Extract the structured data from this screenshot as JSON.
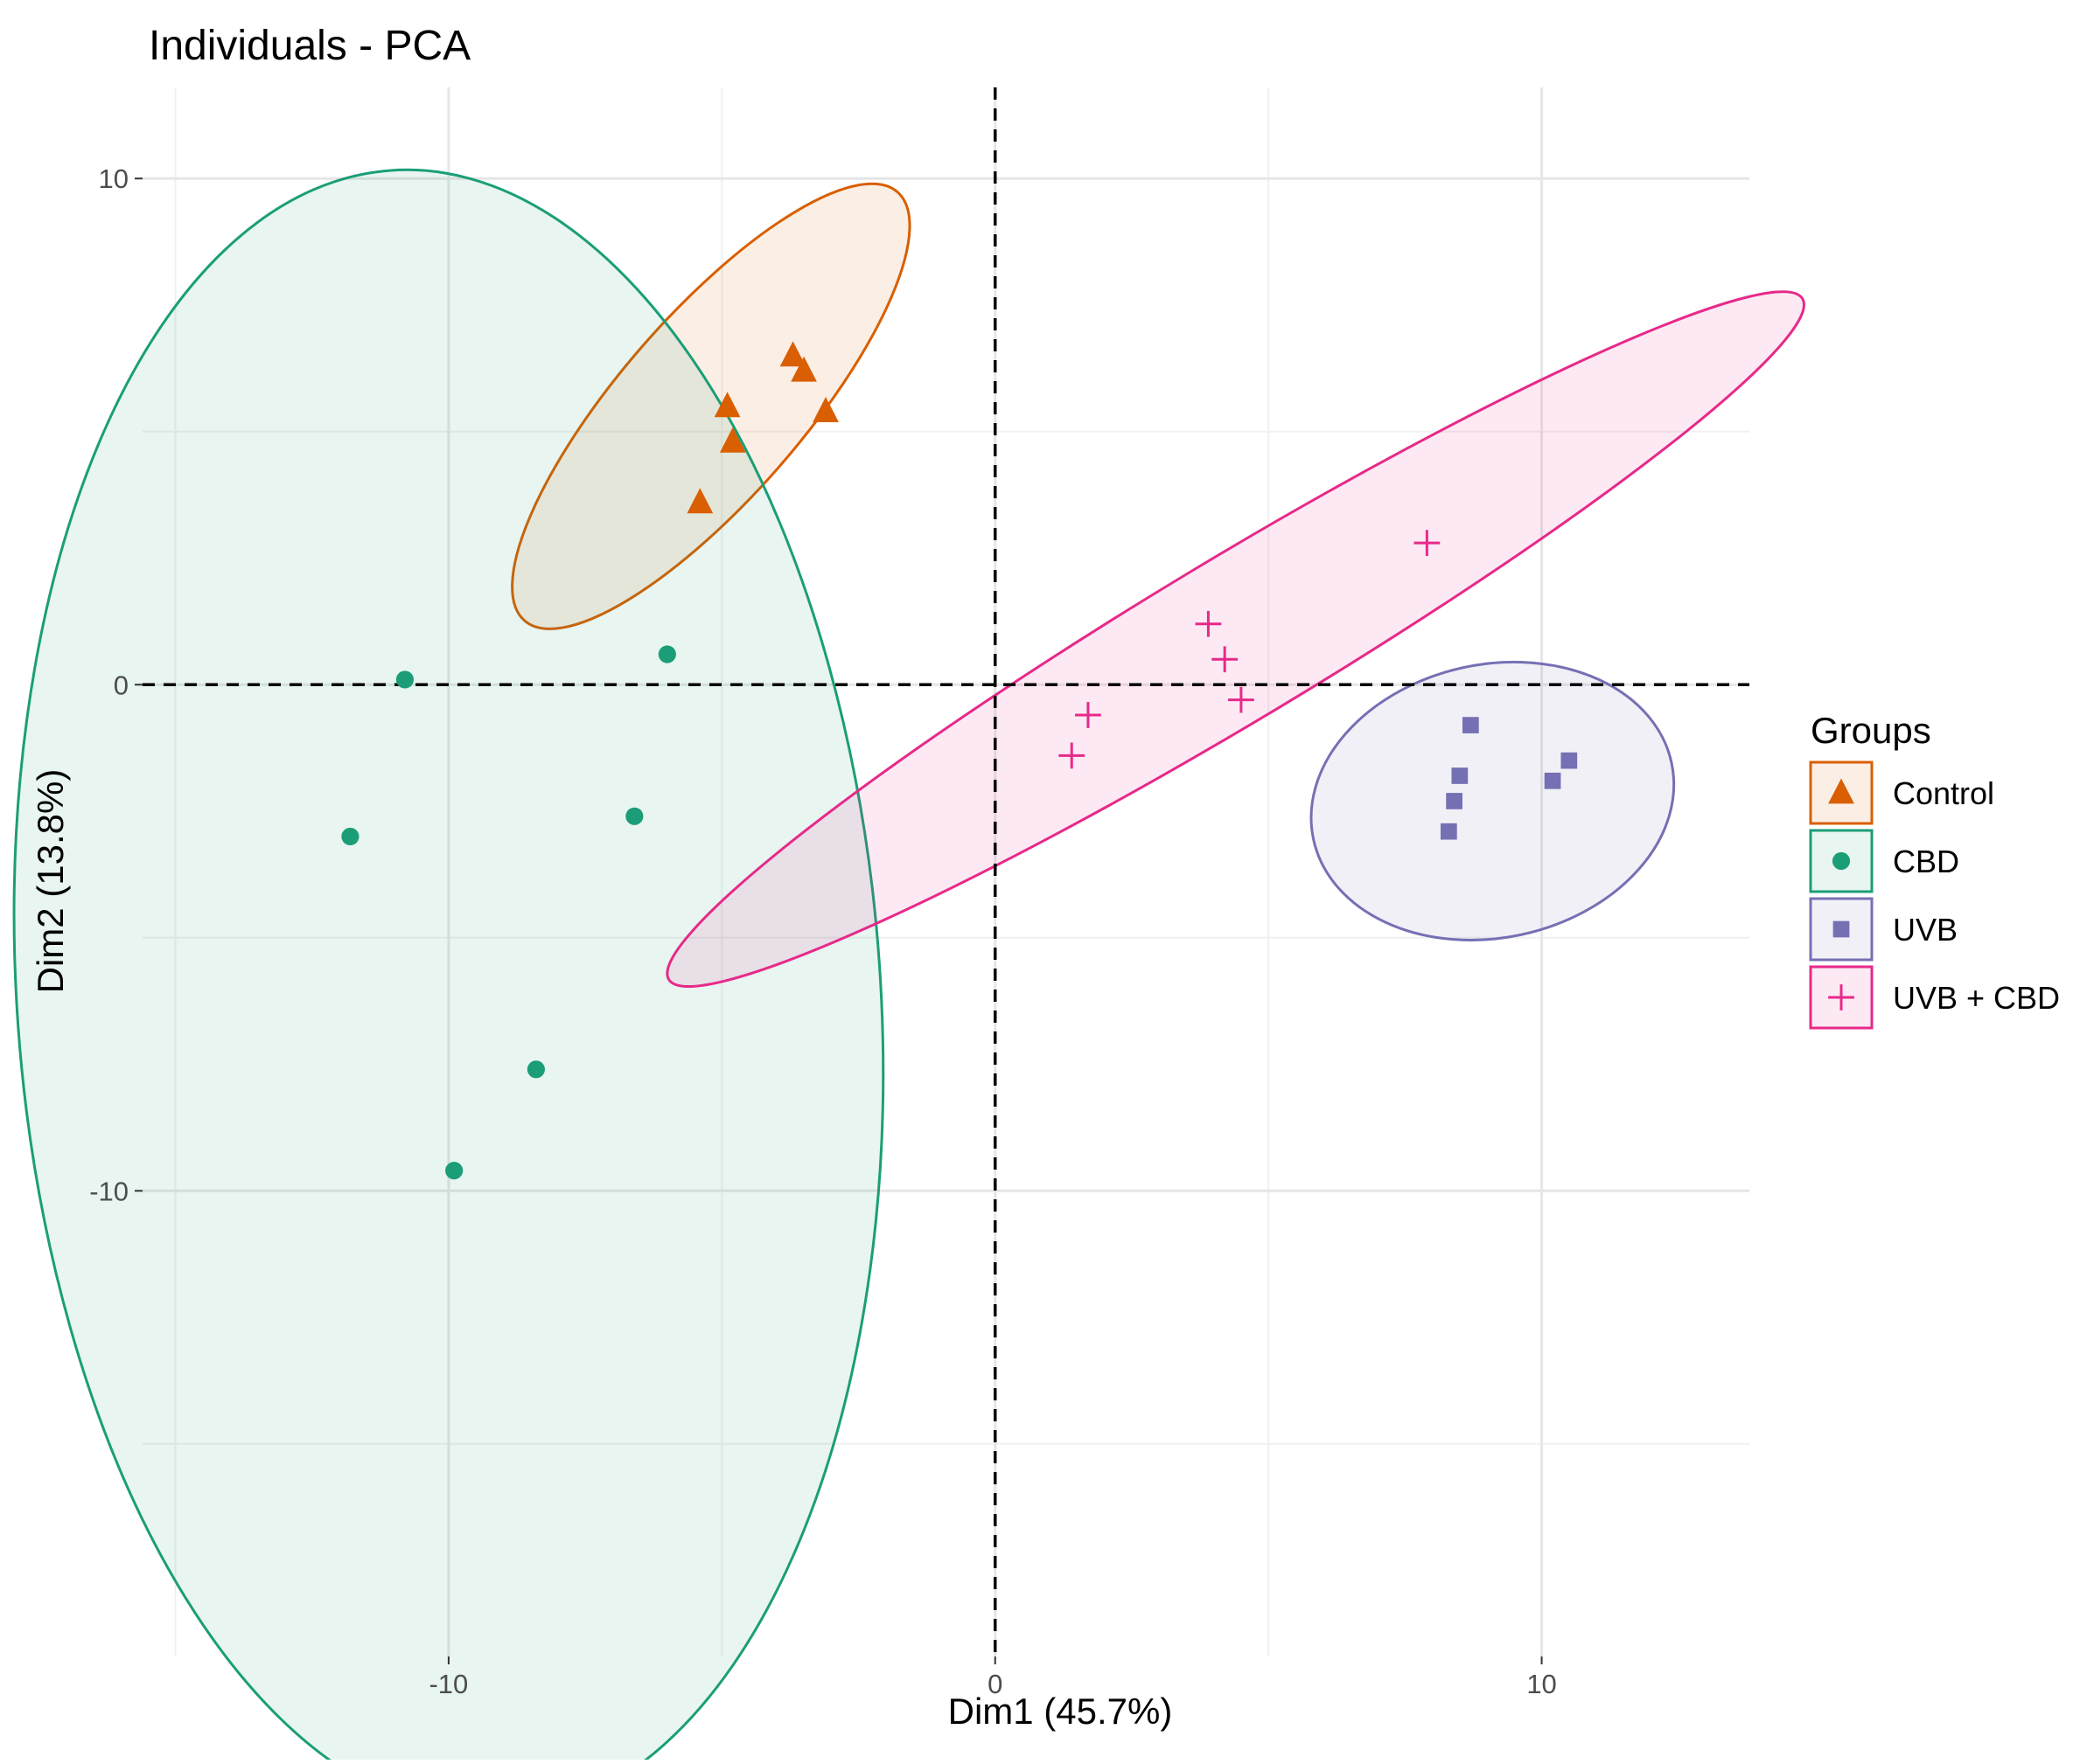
{
  "chart_data": {
    "type": "scatter",
    "title": "Individuals - PCA",
    "xlabel": "Dim1 (45.7%)",
    "ylabel": "Dim2 (13.8%)",
    "xlim": [
      -15.6,
      13.8
    ],
    "ylim": [
      -19.2,
      11.8
    ],
    "x_ticks": [
      -10,
      0,
      10
    ],
    "x_tick_labels": [
      "-10",
      "0",
      "10"
    ],
    "y_ticks": [
      -10,
      0,
      10
    ],
    "y_tick_labels": [
      "-10",
      "0",
      "10"
    ],
    "x_minor_gridlines": [
      -15,
      -5,
      5
    ],
    "y_minor_gridlines": [
      -15,
      -5,
      5
    ],
    "reference_lines": {
      "x": 0,
      "y": 0,
      "style": "dashed"
    },
    "legend": {
      "title": "Groups",
      "position": "right"
    },
    "series": [
      {
        "name": "Control",
        "marker": "triangle",
        "color": "#D95F02",
        "ellipse": {
          "cx": -5.2,
          "cy": 5.5,
          "rx": 5.2,
          "ry": 1.8,
          "angle_deg": 49
        },
        "points": [
          [
            -3.7,
            6.5
          ],
          [
            -3.5,
            6.2
          ],
          [
            -3.1,
            5.4
          ],
          [
            -4.9,
            5.5
          ],
          [
            -4.8,
            4.8
          ],
          [
            -5.4,
            3.6
          ]
        ]
      },
      {
        "name": "CBD",
        "marker": "circle",
        "color": "#1B9E77",
        "ellipse": {
          "cx": -10.0,
          "cy": -6.1,
          "rx": 7.9,
          "ry": 16.3,
          "angle_deg": 4
        },
        "points": [
          [
            -10.8,
            0.1
          ],
          [
            -6.0,
            0.6
          ],
          [
            -11.8,
            -3.0
          ],
          [
            -6.6,
            -2.6
          ],
          [
            -8.4,
            -7.6
          ],
          [
            -9.9,
            -9.6
          ]
        ]
      },
      {
        "name": "UVB",
        "marker": "square",
        "color": "#7570B3",
        "ellipse": {
          "cx": 9.1,
          "cy": -2.3,
          "rx": 3.35,
          "ry": 2.7,
          "angle_deg": 12
        },
        "points": [
          [
            8.7,
            -0.8
          ],
          [
            10.5,
            -1.5
          ],
          [
            10.2,
            -1.9
          ],
          [
            8.5,
            -1.8
          ],
          [
            8.4,
            -2.3
          ],
          [
            8.3,
            -2.9
          ]
        ]
      },
      {
        "name": "UVB + CBD",
        "marker": "plus",
        "color": "#E7298A",
        "ellipse": {
          "cx": 4.4,
          "cy": 0.9,
          "rx": 12.1,
          "ry": 1.6,
          "angle_deg": 31
        },
        "points": [
          [
            7.9,
            2.8
          ],
          [
            3.9,
            1.2
          ],
          [
            4.2,
            0.5
          ],
          [
            4.5,
            -0.3
          ],
          [
            1.7,
            -0.6
          ],
          [
            1.4,
            -1.4
          ]
        ]
      }
    ]
  }
}
